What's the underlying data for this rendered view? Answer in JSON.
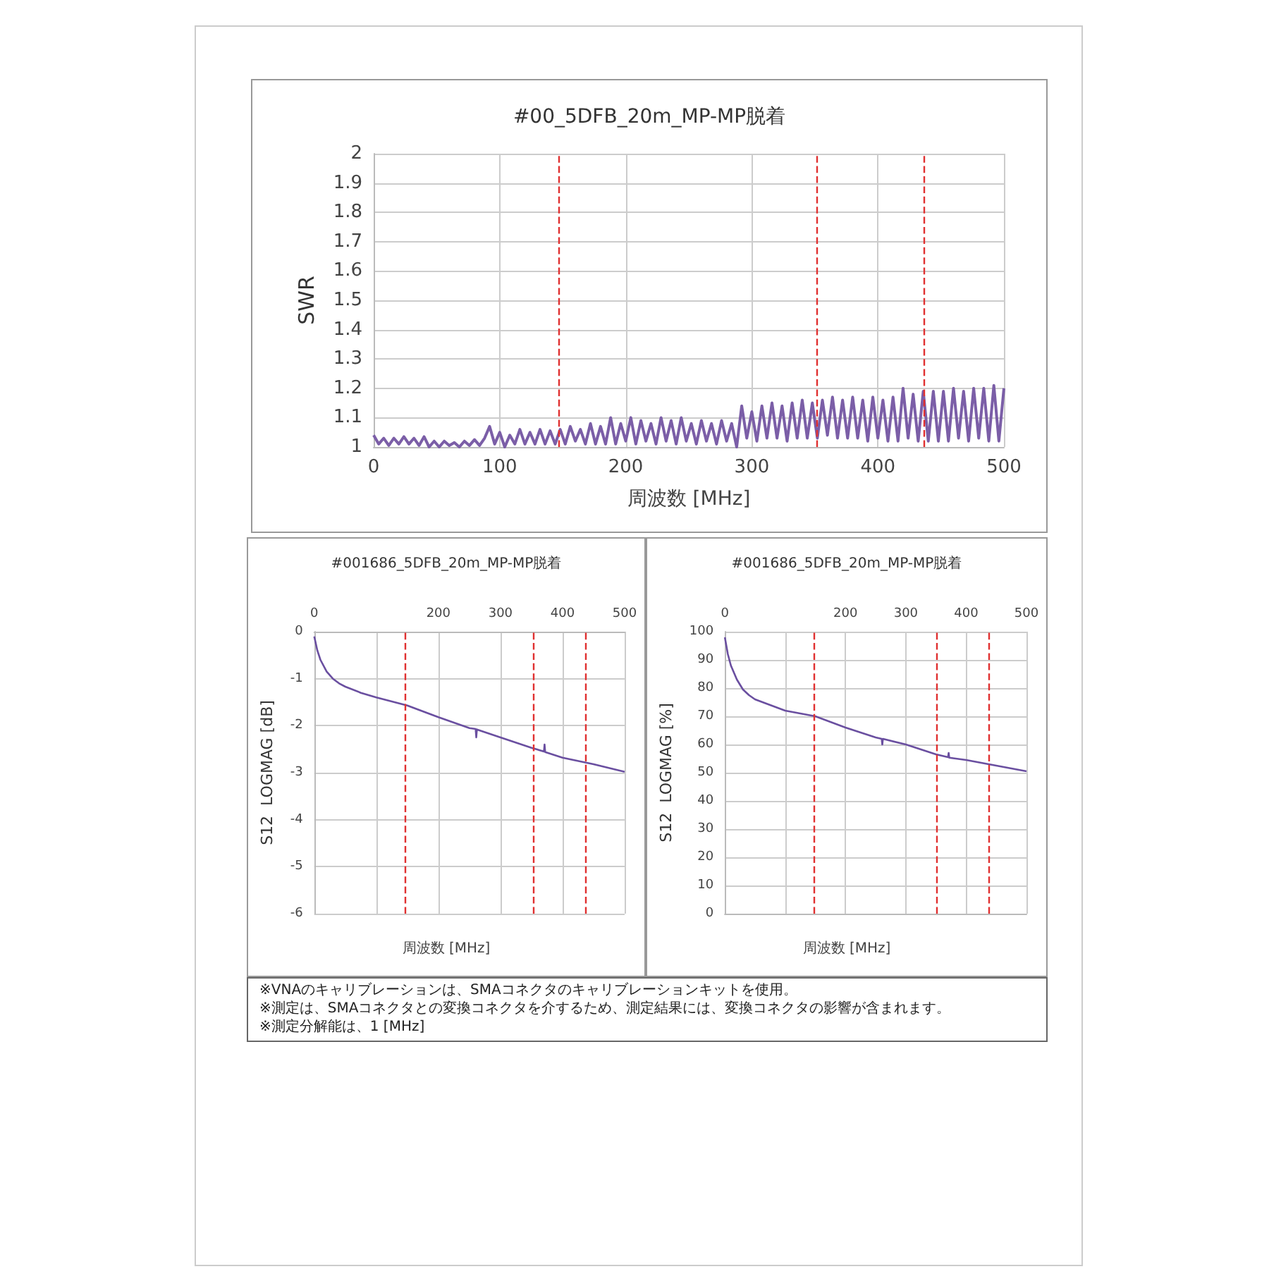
{
  "chart_data": [
    {
      "type": "line",
      "title": "#00_5DFB_20m_MP-MP脱着",
      "xlabel": "周波数 [MHz]",
      "ylabel": "SWR",
      "color": "#7b5ea7",
      "grid": true,
      "xlim": [
        0,
        500
      ],
      "xticks": [
        0,
        100,
        200,
        300,
        400,
        500
      ],
      "ylim": [
        1,
        2
      ],
      "yticks": [
        1,
        1.1,
        1.2,
        1.3,
        1.4,
        1.5,
        1.6,
        1.7,
        1.8,
        1.9,
        2
      ],
      "x": [
        0,
        4,
        8,
        12,
        16,
        20,
        24,
        28,
        32,
        36,
        40,
        44,
        48,
        52,
        56,
        60,
        64,
        68,
        72,
        76,
        80,
        84,
        88,
        92,
        96,
        100,
        104,
        108,
        112,
        116,
        120,
        124,
        128,
        132,
        136,
        140,
        144,
        148,
        152,
        156,
        160,
        164,
        168,
        172,
        176,
        180,
        184,
        188,
        192,
        196,
        200,
        204,
        208,
        212,
        216,
        220,
        224,
        228,
        232,
        236,
        240,
        244,
        248,
        252,
        256,
        260,
        264,
        268,
        272,
        276,
        280,
        284,
        288,
        292,
        296,
        300,
        304,
        308,
        312,
        316,
        320,
        324,
        328,
        332,
        336,
        340,
        344,
        348,
        352,
        356,
        360,
        364,
        368,
        372,
        376,
        380,
        384,
        388,
        392,
        396,
        400,
        404,
        408,
        412,
        416,
        420,
        424,
        428,
        432,
        436,
        440,
        444,
        448,
        452,
        456,
        460,
        464,
        468,
        472,
        476,
        480,
        484,
        488,
        492,
        496,
        500
      ],
      "values": [
        1.04,
        1.01,
        1.03,
        1.005,
        1.03,
        1.01,
        1.035,
        1.01,
        1.03,
        1.005,
        1.035,
        1.0,
        1.02,
        1.0,
        1.02,
        1.005,
        1.015,
        1.0,
        1.02,
        1.005,
        1.025,
        1.005,
        1.03,
        1.07,
        1.01,
        1.05,
        1.0,
        1.04,
        1.01,
        1.06,
        1.01,
        1.05,
        1.01,
        1.06,
        1.01,
        1.055,
        1.01,
        1.06,
        1.01,
        1.07,
        1.02,
        1.06,
        1.01,
        1.08,
        1.01,
        1.07,
        1.01,
        1.1,
        1.01,
        1.08,
        1.02,
        1.1,
        1.01,
        1.09,
        1.02,
        1.08,
        1.01,
        1.1,
        1.02,
        1.09,
        1.01,
        1.1,
        1.02,
        1.08,
        1.01,
        1.09,
        1.02,
        1.08,
        1.01,
        1.09,
        1.02,
        1.08,
        1.0,
        1.14,
        1.03,
        1.12,
        1.02,
        1.14,
        1.03,
        1.15,
        1.03,
        1.14,
        1.02,
        1.15,
        1.03,
        1.16,
        1.03,
        1.15,
        1.03,
        1.16,
        1.04,
        1.17,
        1.03,
        1.16,
        1.03,
        1.17,
        1.03,
        1.16,
        1.02,
        1.17,
        1.03,
        1.16,
        1.02,
        1.17,
        1.02,
        1.2,
        1.03,
        1.18,
        1.02,
        1.19,
        1.02,
        1.19,
        1.02,
        1.19,
        1.02,
        1.2,
        1.03,
        1.19,
        1.02,
        1.2,
        1.03,
        1.2,
        1.02,
        1.21,
        1.02,
        1.2
      ],
      "ref_lines": [
        {
          "axis": "x",
          "value": 147,
          "color": "#e03030",
          "line_style": "dashed"
        },
        {
          "axis": "x",
          "value": 352,
          "color": "#e03030",
          "line_style": "dashed"
        },
        {
          "axis": "x",
          "value": 437,
          "color": "#e03030",
          "line_style": "dashed"
        }
      ]
    },
    {
      "type": "line",
      "title": "#001686_5DFB_20m_MP-MP脱着",
      "xlabel": "周波数 [MHz]",
      "ylabel": "S12  LOGMAG [dB]",
      "color": "#6a4fa0",
      "grid": true,
      "xlim": [
        0,
        500
      ],
      "xticks": [
        0,
        {
          "value": 100,
          "label": null
        },
        200,
        300,
        400,
        500
      ],
      "ylim": [
        -6,
        0
      ],
      "yticks": [
        -6,
        -5,
        -4,
        -3,
        -2,
        -1,
        0
      ],
      "x": [
        0,
        5,
        10,
        20,
        30,
        40,
        50,
        75,
        100,
        150,
        200,
        250,
        260,
        261,
        262,
        300,
        350,
        370,
        371,
        372,
        400,
        450,
        500
      ],
      "values": [
        -0.1,
        -0.4,
        -0.6,
        -0.85,
        -1.0,
        -1.1,
        -1.17,
        -1.3,
        -1.4,
        -1.57,
        -1.82,
        -2.05,
        -2.07,
        -2.25,
        -2.08,
        -2.25,
        -2.47,
        -2.55,
        -2.4,
        -2.56,
        -2.68,
        -2.82,
        -2.98
      ],
      "ref_lines": [
        {
          "axis": "x",
          "value": 147,
          "color": "#e03030",
          "line_style": "dashed"
        },
        {
          "axis": "x",
          "value": 352,
          "color": "#e03030",
          "line_style": "dashed"
        },
        {
          "axis": "x",
          "value": 437,
          "color": "#e03030",
          "line_style": "dashed"
        }
      ]
    },
    {
      "type": "line",
      "title": "#001686_5DFB_20m_MP-MP脱着",
      "xlabel": "周波数 [MHz]",
      "ylabel": "S12  LOGMAG [%]",
      "color": "#6a4fa0",
      "grid": true,
      "xlim": [
        0,
        500
      ],
      "xticks": [
        0,
        {
          "value": 100,
          "label": null
        },
        200,
        300,
        400,
        500
      ],
      "ylim": [
        0,
        100
      ],
      "yticks": [
        0,
        10,
        20,
        30,
        40,
        50,
        60,
        70,
        80,
        90,
        100
      ],
      "x": [
        0,
        5,
        10,
        20,
        30,
        40,
        50,
        75,
        100,
        150,
        200,
        250,
        260,
        261,
        262,
        300,
        350,
        370,
        371,
        372,
        400,
        450,
        500
      ],
      "values": [
        98,
        92,
        88,
        83,
        79.5,
        77.5,
        76,
        74,
        72,
        70,
        66,
        62.5,
        62,
        60,
        62,
        60,
        56.5,
        55.5,
        57,
        55.3,
        54.5,
        52.5,
        50.5
      ],
      "ref_lines": [
        {
          "axis": "x",
          "value": 147,
          "color": "#e03030",
          "line_style": "dashed"
        },
        {
          "axis": "x",
          "value": 352,
          "color": "#e03030",
          "line_style": "dashed"
        },
        {
          "axis": "x",
          "value": 437,
          "color": "#e03030",
          "line_style": "dashed"
        }
      ]
    },
    {
      "type": "other",
      "annotations": [
        "※VNAのキャリブレーションは、SMAコネクタのキャリブレーションキットを使用。",
        "※測定は、SMAコネクタとの変換コネクタを介するため、測定結果には、変換コネクタの影響が含まれます。",
        "※測定分解能は、1 [MHz]"
      ]
    }
  ]
}
